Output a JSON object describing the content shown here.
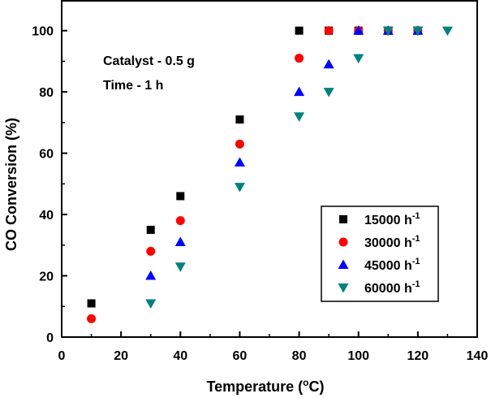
{
  "chart_data": {
    "type": "scatter",
    "title": "",
    "xlabel": "Temperature",
    "xlabel_unit": "°C",
    "ylabel": "CO Conversion (%)",
    "xlim": [
      0,
      140
    ],
    "ylim": [
      0,
      110
    ],
    "x_ticks": [
      0,
      20,
      40,
      60,
      80,
      100,
      120,
      140
    ],
    "y_ticks": [
      0,
      20,
      40,
      60,
      80,
      100
    ],
    "grid": false,
    "legend_position": "lower-right",
    "annotations": [
      "Catalyst - 0.5 g",
      "Time - 1 h"
    ],
    "series": [
      {
        "name": "15000",
        "unit_suffix": "h",
        "unit_exponent": "-1",
        "marker": "square",
        "color": "#000000",
        "points": [
          [
            10,
            11
          ],
          [
            30,
            35
          ],
          [
            40,
            46
          ],
          [
            60,
            71
          ],
          [
            80,
            100
          ],
          [
            90,
            100
          ],
          [
            100,
            100
          ],
          [
            110,
            100
          ],
          [
            120,
            100
          ]
        ]
      },
      {
        "name": "30000",
        "unit_suffix": "h",
        "unit_exponent": "-1",
        "marker": "circle",
        "color": "#ff0000",
        "points": [
          [
            10,
            6
          ],
          [
            30,
            28
          ],
          [
            40,
            38
          ],
          [
            60,
            63
          ],
          [
            80,
            91
          ],
          [
            90,
            100
          ],
          [
            100,
            100
          ],
          [
            110,
            100
          ],
          [
            120,
            100
          ]
        ]
      },
      {
        "name": "45000",
        "unit_suffix": "h",
        "unit_exponent": "-1",
        "marker": "triangle-up",
        "color": "#0000ff",
        "points": [
          [
            30,
            20
          ],
          [
            40,
            31
          ],
          [
            60,
            57
          ],
          [
            80,
            80
          ],
          [
            90,
            89
          ],
          [
            100,
            100
          ],
          [
            110,
            100
          ],
          [
            120,
            100
          ]
        ]
      },
      {
        "name": "60000",
        "unit_suffix": "h",
        "unit_exponent": "-1",
        "marker": "triangle-down",
        "color": "#008080",
        "points": [
          [
            30,
            11
          ],
          [
            40,
            23
          ],
          [
            60,
            49
          ],
          [
            80,
            72
          ],
          [
            90,
            80
          ],
          [
            100,
            91
          ],
          [
            110,
            100
          ],
          [
            120,
            100
          ],
          [
            130,
            100
          ]
        ]
      }
    ]
  }
}
